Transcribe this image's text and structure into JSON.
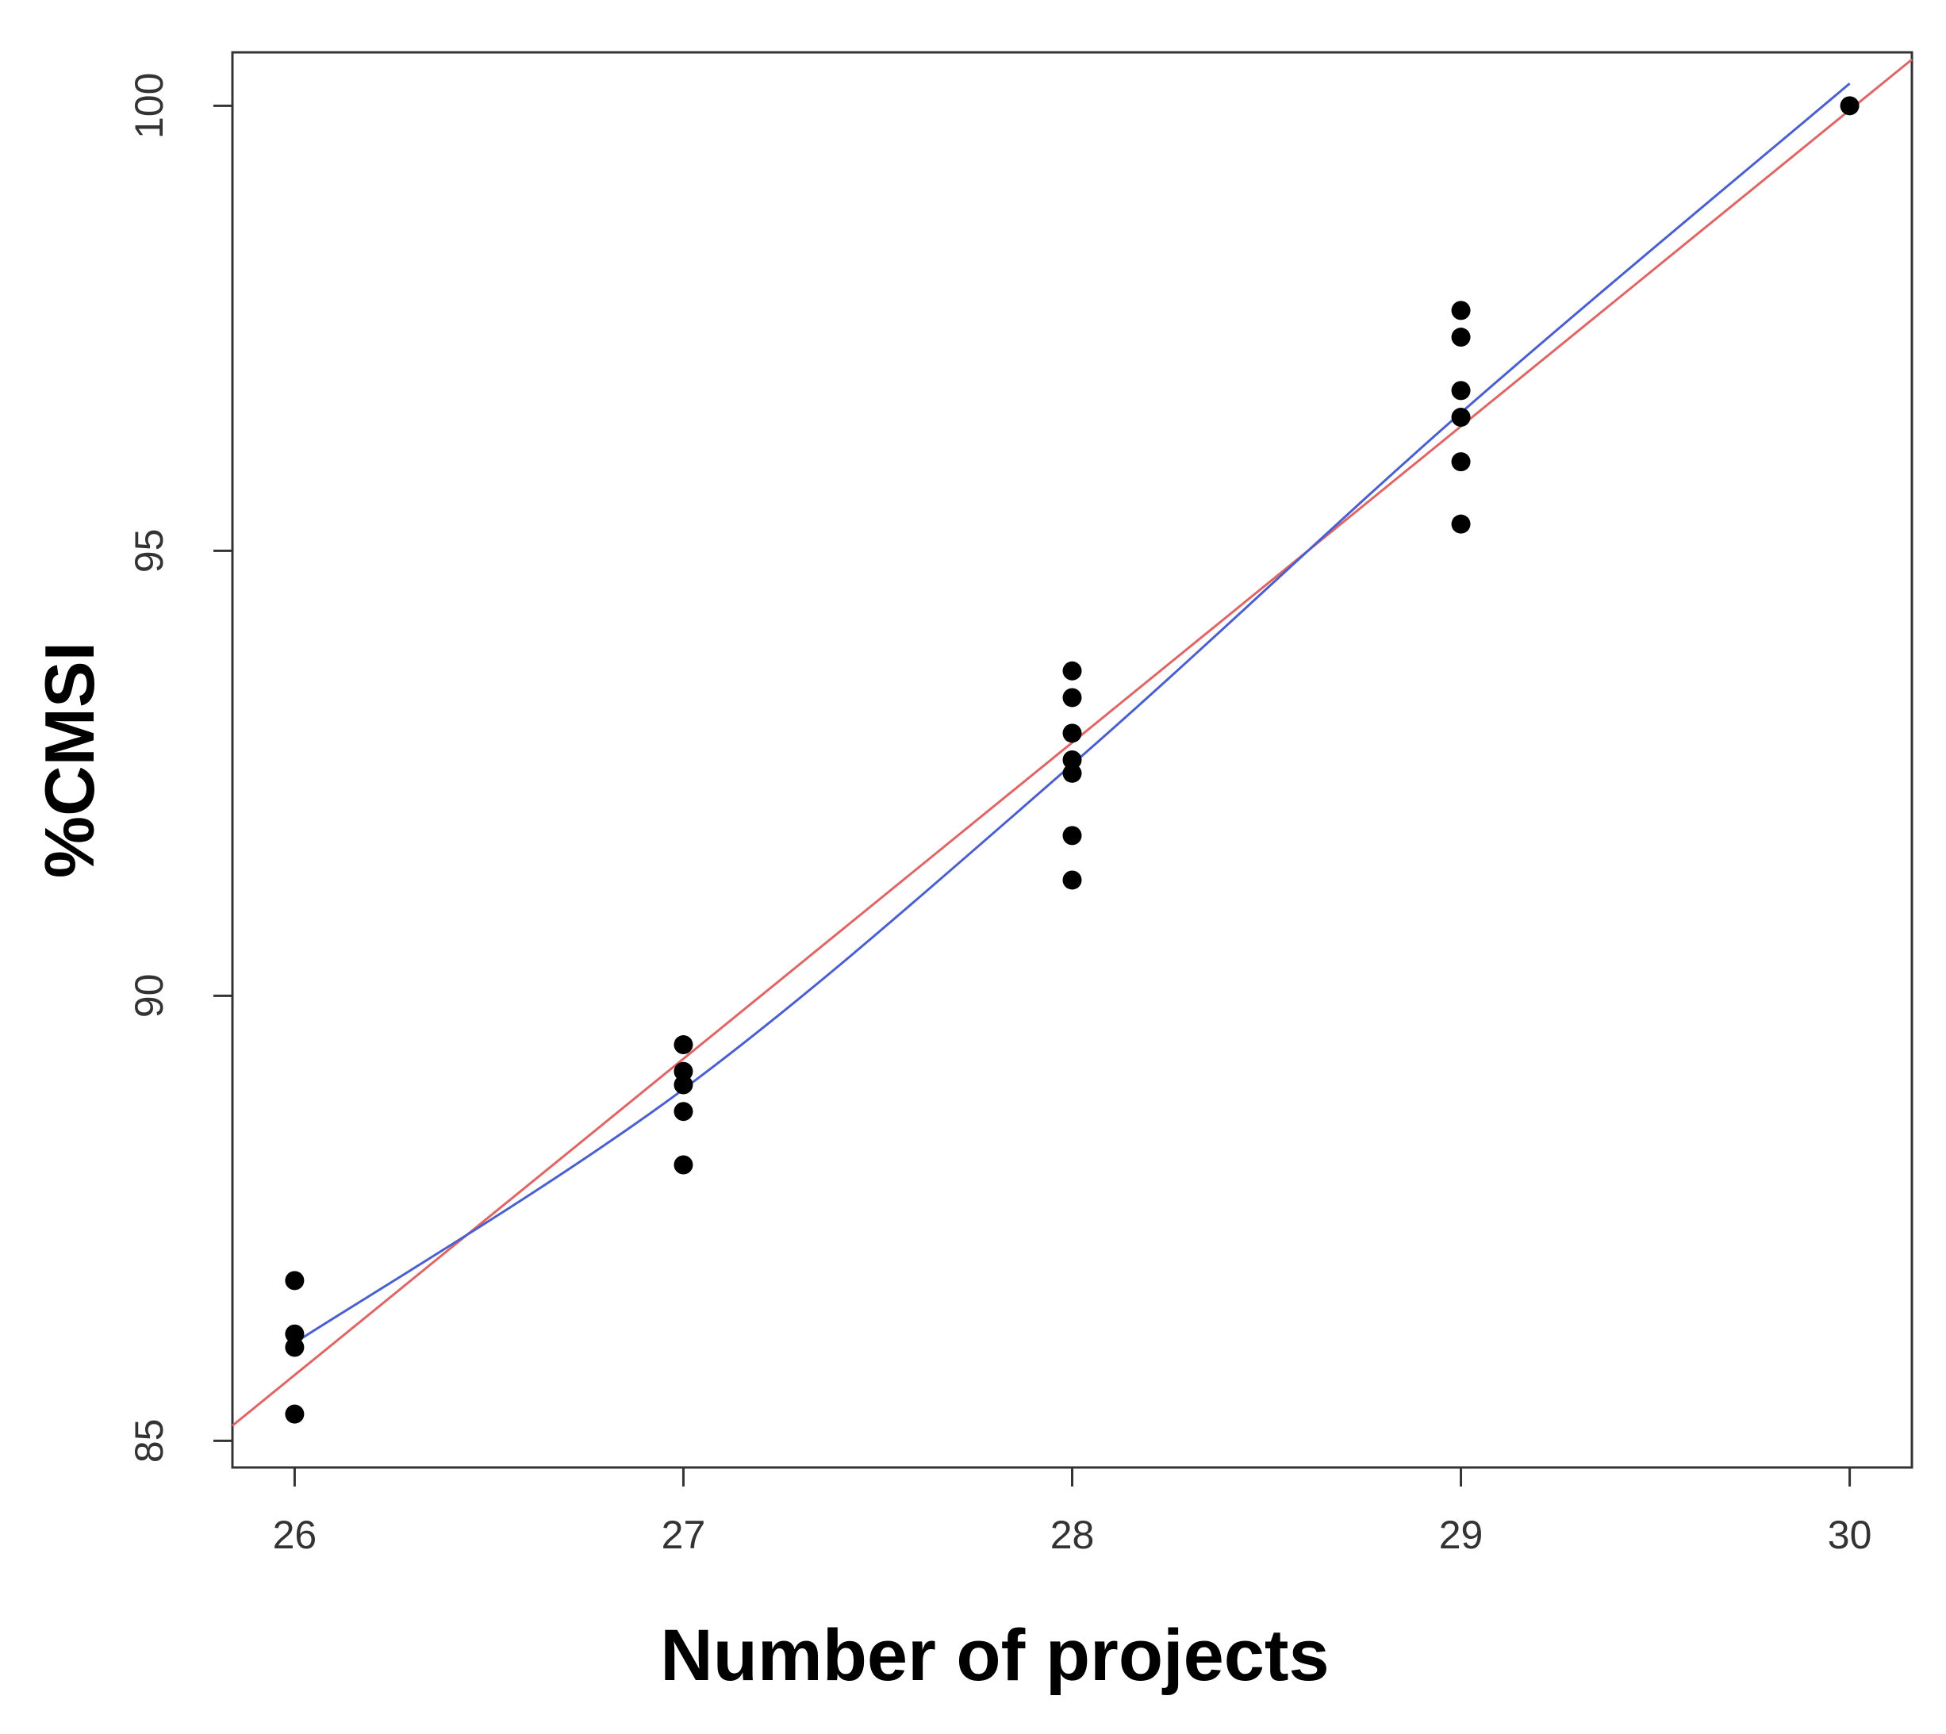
{
  "chart_data": {
    "type": "scatter",
    "xlabel": "Number of projects",
    "ylabel": "%CMSI",
    "xlim": [
      25.84,
      30.16
    ],
    "ylim": [
      84.7,
      100.6
    ],
    "x_ticks": [
      26,
      27,
      28,
      29,
      30
    ],
    "y_ticks": [
      85,
      90,
      95,
      100
    ],
    "grid": false,
    "points": [
      {
        "x": 26,
        "y": 86.8
      },
      {
        "x": 26,
        "y": 86.2
      },
      {
        "x": 26,
        "y": 86.05
      },
      {
        "x": 26,
        "y": 85.3
      },
      {
        "x": 27,
        "y": 89.45
      },
      {
        "x": 27,
        "y": 89.15
      },
      {
        "x": 27,
        "y": 89.0
      },
      {
        "x": 27,
        "y": 88.7
      },
      {
        "x": 27,
        "y": 88.1
      },
      {
        "x": 28,
        "y": 93.65
      },
      {
        "x": 28,
        "y": 93.35
      },
      {
        "x": 28,
        "y": 92.95
      },
      {
        "x": 28,
        "y": 92.65
      },
      {
        "x": 28,
        "y": 92.5
      },
      {
        "x": 28,
        "y": 91.8
      },
      {
        "x": 28,
        "y": 91.3
      },
      {
        "x": 29,
        "y": 97.7
      },
      {
        "x": 29,
        "y": 97.4
      },
      {
        "x": 29,
        "y": 96.8
      },
      {
        "x": 29,
        "y": 96.5
      },
      {
        "x": 29,
        "y": 96.0
      },
      {
        "x": 29,
        "y": 95.3
      },
      {
        "x": 30,
        "y": 100.0
      }
    ],
    "fit_lines": [
      {
        "color": "#e06666",
        "style": "linear",
        "x": [
          25.84,
          30.16
        ],
        "y": [
          85.17,
          100.52
        ]
      },
      {
        "color": "#4a5fd0",
        "style": "smooth",
        "x": [
          26,
          27,
          28,
          29,
          30
        ],
        "y": [
          86.1,
          88.95,
          92.6,
          96.55,
          100.25
        ]
      }
    ],
    "point_color": "#000000"
  }
}
